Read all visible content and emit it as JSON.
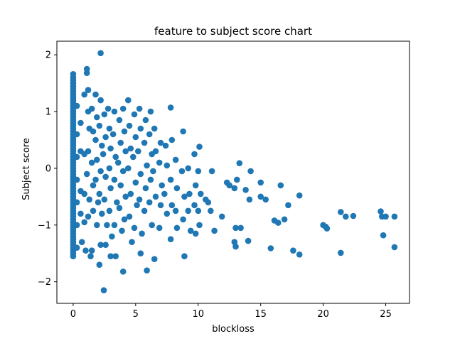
{
  "chart_data": {
    "type": "scatter",
    "title": "feature to subject score chart",
    "xlabel": "blockloss",
    "ylabel": "Subject score",
    "xlim": [
      -1.3,
      26.9
    ],
    "ylim": [
      -2.38,
      2.24
    ],
    "xticks": [
      0,
      5,
      10,
      15,
      20,
      25
    ],
    "yticks": [
      -2,
      -1,
      0,
      1,
      2
    ],
    "xtick_labels": [
      "0",
      "5",
      "10",
      "15",
      "20",
      "25"
    ],
    "ytick_labels": [
      "−2",
      "−1",
      "0",
      "1",
      "2"
    ],
    "grid": false,
    "marker_color": "#1f77b4",
    "series": [
      {
        "points": [
          [
            0,
            1.66
          ],
          [
            0,
            1.6
          ],
          [
            0,
            1.55
          ],
          [
            0,
            1.5
          ],
          [
            0,
            1.45
          ],
          [
            0,
            1.4
          ],
          [
            0,
            1.35
          ],
          [
            0,
            1.3
          ],
          [
            0,
            1.25
          ],
          [
            0,
            1.2
          ],
          [
            0,
            1.15
          ],
          [
            0,
            1.1
          ],
          [
            0,
            1.05
          ],
          [
            0,
            1.0
          ],
          [
            0,
            0.95
          ],
          [
            0,
            0.9
          ],
          [
            0,
            0.85
          ],
          [
            0,
            0.8
          ],
          [
            0,
            0.75
          ],
          [
            0,
            0.7
          ],
          [
            0,
            0.65
          ],
          [
            0,
            0.6
          ],
          [
            0,
            0.55
          ],
          [
            0,
            0.5
          ],
          [
            0,
            0.45
          ],
          [
            0,
            0.4
          ],
          [
            0,
            0.35
          ],
          [
            0,
            0.3
          ],
          [
            0,
            0.25
          ],
          [
            0,
            0.2
          ],
          [
            0,
            0.15
          ],
          [
            0,
            0.1
          ],
          [
            0,
            0.05
          ],
          [
            0,
            0.0
          ],
          [
            0,
            -0.05
          ],
          [
            0,
            -0.1
          ],
          [
            0,
            -0.15
          ],
          [
            0,
            -0.2
          ],
          [
            0,
            -0.25
          ],
          [
            0,
            -0.3
          ],
          [
            0,
            -0.35
          ],
          [
            0,
            -0.4
          ],
          [
            0,
            -0.45
          ],
          [
            0,
            -0.5
          ],
          [
            0,
            -0.55
          ],
          [
            0,
            -0.6
          ],
          [
            0,
            -0.65
          ],
          [
            0,
            -0.7
          ],
          [
            0,
            -0.75
          ],
          [
            0,
            -0.8
          ],
          [
            0,
            -0.85
          ],
          [
            0,
            -0.9
          ],
          [
            0,
            -0.95
          ],
          [
            0,
            -1.0
          ],
          [
            0,
            -1.05
          ],
          [
            0,
            -1.1
          ],
          [
            0,
            -1.15
          ],
          [
            0,
            -1.2
          ],
          [
            0,
            -1.25
          ],
          [
            0,
            -1.3
          ],
          [
            0,
            -1.35
          ],
          [
            0,
            -1.4
          ],
          [
            0,
            -1.45
          ],
          [
            0,
            -1.5
          ],
          [
            0,
            -1.55
          ],
          [
            0.3,
            1.1
          ],
          [
            0.3,
            0.6
          ],
          [
            0.3,
            0.2
          ],
          [
            0.3,
            -0.2
          ],
          [
            0.3,
            -0.6
          ],
          [
            0.3,
            -1.0
          ],
          [
            0.3,
            -1.4
          ],
          [
            0.6,
            0.8
          ],
          [
            0.6,
            0.3
          ],
          [
            0.6,
            -0.4
          ],
          [
            0.6,
            -0.8
          ],
          [
            0.7,
            -1.3
          ],
          [
            0.9,
            1.3
          ],
          [
            0.9,
            0.25
          ],
          [
            0.9,
            -0.45
          ],
          [
            0.9,
            -0.95
          ],
          [
            1.0,
            -1.45
          ],
          [
            1.1,
            1.75
          ],
          [
            1.1,
            1.68
          ],
          [
            1.2,
            1.38
          ],
          [
            1.2,
            1.0
          ],
          [
            1.3,
            0.7
          ],
          [
            1.2,
            0.3
          ],
          [
            1.1,
            -0.1
          ],
          [
            1.3,
            -0.55
          ],
          [
            1.2,
            -0.85
          ],
          [
            1.4,
            -1.55
          ],
          [
            1.5,
            1.05
          ],
          [
            1.6,
            0.65
          ],
          [
            1.5,
            0.1
          ],
          [
            1.6,
            -0.3
          ],
          [
            1.6,
            -0.75
          ],
          [
            1.5,
            -1.45
          ],
          [
            1.8,
            1.3
          ],
          [
            1.9,
            0.9
          ],
          [
            1.8,
            0.5
          ],
          [
            1.9,
            0.15
          ],
          [
            1.8,
            -0.2
          ],
          [
            2.0,
            -0.6
          ],
          [
            1.9,
            -1.0
          ],
          [
            2.2,
            2.03
          ],
          [
            2.2,
            1.2
          ],
          [
            2.1,
            0.75
          ],
          [
            2.3,
            0.4
          ],
          [
            2.2,
            -0.05
          ],
          [
            2.1,
            -0.45
          ],
          [
            2.3,
            -0.8
          ],
          [
            2.2,
            -1.35
          ],
          [
            2.1,
            -1.7
          ],
          [
            2.5,
            0.95
          ],
          [
            2.6,
            0.55
          ],
          [
            2.4,
            0.25
          ],
          [
            2.6,
            -0.15
          ],
          [
            2.5,
            -0.55
          ],
          [
            2.7,
            -1.0
          ],
          [
            2.6,
            -1.35
          ],
          [
            2.45,
            -2.15
          ],
          [
            2.8,
            1.05
          ],
          [
            2.9,
            0.7
          ],
          [
            3.0,
            0.35
          ],
          [
            2.9,
            0.0
          ],
          [
            3.0,
            -0.35
          ],
          [
            2.9,
            -0.75
          ],
          [
            3.1,
            -1.2
          ],
          [
            3.0,
            -1.55
          ],
          [
            3.3,
            1.0
          ],
          [
            3.2,
            0.6
          ],
          [
            3.4,
            0.2
          ],
          [
            3.3,
            -0.2
          ],
          [
            3.5,
            -0.6
          ],
          [
            3.3,
            -1.0
          ],
          [
            3.4,
            -1.55
          ],
          [
            3.7,
            0.85
          ],
          [
            3.8,
            0.45
          ],
          [
            3.6,
            0.1
          ],
          [
            3.8,
            -0.3
          ],
          [
            3.7,
            -0.7
          ],
          [
            3.9,
            -1.1
          ],
          [
            4.0,
            1.05
          ],
          [
            4.1,
            0.65
          ],
          [
            4.2,
            0.3
          ],
          [
            4.0,
            -0.05
          ],
          [
            4.2,
            -0.5
          ],
          [
            4.1,
            -0.9
          ],
          [
            4.0,
            -1.82
          ],
          [
            4.4,
            1.2
          ],
          [
            4.5,
            0.75
          ],
          [
            4.6,
            0.35
          ],
          [
            4.4,
            0.0
          ],
          [
            4.6,
            -0.45
          ],
          [
            4.5,
            -0.85
          ],
          [
            4.7,
            -1.3
          ],
          [
            4.9,
            0.95
          ],
          [
            5.0,
            0.55
          ],
          [
            4.8,
            0.2
          ],
          [
            5.0,
            -0.25
          ],
          [
            5.1,
            -0.65
          ],
          [
            4.9,
            -1.05
          ],
          [
            5.3,
            1.05
          ],
          [
            5.4,
            0.7
          ],
          [
            5.2,
            0.3
          ],
          [
            5.4,
            -0.1
          ],
          [
            5.3,
            -0.55
          ],
          [
            5.5,
            -1.15
          ],
          [
            5.4,
            -1.5
          ],
          [
            5.8,
            0.85
          ],
          [
            5.7,
            0.45
          ],
          [
            5.9,
            0.05
          ],
          [
            5.8,
            -0.35
          ],
          [
            5.7,
            -0.75
          ],
          [
            5.9,
            -1.8
          ],
          [
            6.2,
            1.0
          ],
          [
            6.1,
            0.6
          ],
          [
            6.3,
            0.25
          ],
          [
            6.2,
            -0.2
          ],
          [
            6.1,
            -0.6
          ],
          [
            6.3,
            -1.0
          ],
          [
            6.5,
            0.7
          ],
          [
            6.6,
            0.3
          ],
          [
            6.4,
            -0.05
          ],
          [
            6.6,
            -0.5
          ],
          [
            6.5,
            -1.6
          ],
          [
            7.0,
            0.45
          ],
          [
            6.9,
            0.1
          ],
          [
            7.1,
            -0.3
          ],
          [
            7.0,
            -0.65
          ],
          [
            6.9,
            -1.05
          ],
          [
            7.4,
            0.4
          ],
          [
            7.5,
            0.05
          ],
          [
            7.3,
            -0.45
          ],
          [
            7.5,
            -0.8
          ],
          [
            7.8,
            1.07
          ],
          [
            7.9,
            0.5
          ],
          [
            7.8,
            -0.2
          ],
          [
            7.9,
            -0.65
          ],
          [
            7.8,
            -1.25
          ],
          [
            8.2,
            0.15
          ],
          [
            8.3,
            -0.35
          ],
          [
            8.2,
            -0.75
          ],
          [
            8.3,
            -1.05
          ],
          [
            8.8,
            0.65
          ],
          [
            8.7,
            -0.05
          ],
          [
            8.9,
            -0.5
          ],
          [
            8.8,
            -0.9
          ],
          [
            8.9,
            -1.55
          ],
          [
            9.2,
            0.0
          ],
          [
            9.3,
            -0.45
          ],
          [
            9.2,
            -0.75
          ],
          [
            9.4,
            -1.1
          ],
          [
            9.7,
            0.25
          ],
          [
            9.8,
            -0.3
          ],
          [
            9.7,
            -0.65
          ],
          [
            9.8,
            -1.15
          ],
          [
            10.1,
            0.38
          ],
          [
            10.0,
            -0.05
          ],
          [
            10.2,
            -0.45
          ],
          [
            10.0,
            -0.75
          ],
          [
            10.1,
            -1.0
          ],
          [
            10.6,
            -0.55
          ],
          [
            10.8,
            -0.6
          ],
          [
            11.1,
            -0.05
          ],
          [
            11.0,
            -0.75
          ],
          [
            11.3,
            -1.1
          ],
          [
            11.9,
            -0.85
          ],
          [
            12.3,
            -0.25
          ],
          [
            12.5,
            -0.3
          ],
          [
            12.9,
            -0.35
          ],
          [
            13.1,
            -0.2
          ],
          [
            13.0,
            -1.05
          ],
          [
            12.9,
            -1.3
          ],
          [
            13.0,
            -1.38
          ],
          [
            13.3,
            0.09
          ],
          [
            13.4,
            -1.05
          ],
          [
            13.8,
            -0.38
          ],
          [
            14.0,
            -1.28
          ],
          [
            14.1,
            -0.55
          ],
          [
            14.2,
            -0.05
          ],
          [
            15.0,
            -0.25
          ],
          [
            15.0,
            -0.5
          ],
          [
            15.4,
            -0.55
          ],
          [
            15.8,
            -1.41
          ],
          [
            16.1,
            -0.92
          ],
          [
            16.4,
            -0.96
          ],
          [
            16.6,
            -0.3
          ],
          [
            16.9,
            -0.9
          ],
          [
            17.2,
            -0.65
          ],
          [
            17.6,
            -1.45
          ],
          [
            18.1,
            -1.52
          ],
          [
            18.1,
            -0.48
          ],
          [
            20.0,
            -1.0
          ],
          [
            20.2,
            -1.03
          ],
          [
            20.3,
            -1.06
          ],
          [
            21.4,
            -0.77
          ],
          [
            21.4,
            -1.49
          ],
          [
            21.8,
            -0.85
          ],
          [
            22.4,
            -0.84
          ],
          [
            24.6,
            -0.76
          ],
          [
            24.7,
            -0.85
          ],
          [
            24.8,
            -1.18
          ],
          [
            25.0,
            -0.85
          ],
          [
            25.7,
            -0.85
          ],
          [
            25.7,
            -1.39
          ]
        ]
      }
    ]
  }
}
